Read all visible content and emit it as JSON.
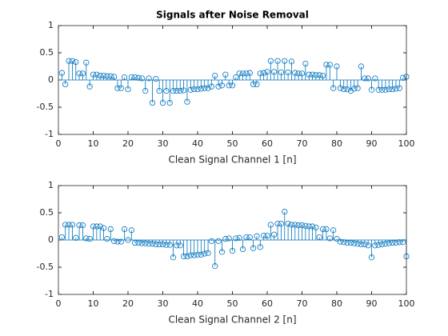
{
  "chart_data": [
    {
      "type": "stem",
      "title": "Signals after Noise Removal",
      "xlabel": "Clean Signal Channel 1 [n]",
      "color": "#0072bd",
      "xlim": [
        0,
        100
      ],
      "xticks": [
        0,
        10,
        20,
        30,
        40,
        50,
        60,
        70,
        80,
        90,
        100
      ],
      "ylim": [
        -1,
        1
      ],
      "yticks": [
        -1,
        -0.5,
        0,
        0.5,
        1
      ],
      "x": [
        1,
        2,
        3,
        4,
        5,
        6,
        7,
        8,
        9,
        10,
        11,
        12,
        13,
        14,
        15,
        16,
        17,
        18,
        19,
        20,
        21,
        22,
        23,
        24,
        25,
        26,
        27,
        28,
        29,
        30,
        31,
        32,
        33,
        34,
        35,
        36,
        37,
        38,
        39,
        40,
        41,
        42,
        43,
        44,
        45,
        46,
        47,
        48,
        49,
        50,
        51,
        52,
        53,
        54,
        55,
        56,
        57,
        58,
        59,
        60,
        61,
        62,
        63,
        64,
        65,
        66,
        67,
        68,
        69,
        70,
        71,
        72,
        73,
        74,
        75,
        76,
        77,
        78,
        79,
        80,
        81,
        82,
        83,
        84,
        85,
        86,
        87,
        88,
        89,
        90,
        91,
        92,
        93,
        94,
        95,
        96,
        97,
        98,
        99,
        100
      ],
      "values": [
        0.13,
        -0.08,
        0.35,
        0.35,
        0.33,
        0.12,
        0.12,
        0.32,
        -0.12,
        0.1,
        0.1,
        0.08,
        0.08,
        0.07,
        0.07,
        0.06,
        -0.15,
        -0.15,
        0.05,
        -0.17,
        0.05,
        0.05,
        0.04,
        0.03,
        -0.2,
        0.03,
        -0.42,
        0.02,
        -0.2,
        -0.42,
        -0.2,
        -0.42,
        -0.2,
        -0.2,
        -0.2,
        -0.19,
        -0.4,
        -0.18,
        -0.17,
        -0.17,
        -0.16,
        -0.15,
        -0.15,
        -0.12,
        0.08,
        -0.12,
        -0.1,
        0.1,
        -0.1,
        -0.1,
        0.05,
        0.12,
        0.12,
        0.12,
        0.13,
        -0.08,
        -0.08,
        0.12,
        0.13,
        0.15,
        0.35,
        0.15,
        0.35,
        0.14,
        0.35,
        0.14,
        0.34,
        0.13,
        0.12,
        0.12,
        0.3,
        0.1,
        0.1,
        0.09,
        0.09,
        0.08,
        0.28,
        0.28,
        -0.15,
        0.25,
        -0.15,
        -0.17,
        -0.17,
        -0.2,
        -0.16,
        -0.15,
        0.25,
        0.03,
        0.03,
        -0.18,
        0.03,
        -0.18,
        -0.18,
        -0.18,
        -0.17,
        -0.17,
        -0.16,
        -0.15,
        0.04,
        0.06
      ]
    },
    {
      "type": "stem",
      "xlabel": "Clean Signal Channel 2 [n]",
      "color": "#0072bd",
      "xlim": [
        0,
        100
      ],
      "xticks": [
        0,
        10,
        20,
        30,
        40,
        50,
        60,
        70,
        80,
        90,
        100
      ],
      "ylim": [
        -1,
        1
      ],
      "yticks": [
        -1,
        -0.5,
        0,
        0.5,
        1
      ],
      "x": [
        1,
        2,
        3,
        4,
        5,
        6,
        7,
        8,
        9,
        10,
        11,
        12,
        13,
        14,
        15,
        16,
        17,
        18,
        19,
        20,
        21,
        22,
        23,
        24,
        25,
        26,
        27,
        28,
        29,
        30,
        31,
        32,
        33,
        34,
        35,
        36,
        37,
        38,
        39,
        40,
        41,
        42,
        43,
        44,
        45,
        46,
        47,
        48,
        49,
        50,
        51,
        52,
        53,
        54,
        55,
        56,
        57,
        58,
        59,
        60,
        61,
        62,
        63,
        64,
        65,
        66,
        67,
        68,
        69,
        70,
        71,
        72,
        73,
        74,
        75,
        76,
        77,
        78,
        79,
        80,
        81,
        82,
        83,
        84,
        85,
        86,
        87,
        88,
        89,
        90,
        91,
        92,
        93,
        94,
        95,
        96,
        97,
        98,
        99,
        100
      ],
      "values": [
        0.05,
        0.28,
        0.28,
        0.28,
        0.04,
        0.27,
        0.27,
        0.03,
        0.02,
        0.25,
        0.25,
        0.25,
        0.22,
        0.02,
        0.2,
        -0.02,
        -0.03,
        -0.03,
        0.2,
        0.0,
        0.18,
        -0.05,
        -0.05,
        -0.06,
        -0.06,
        -0.07,
        -0.07,
        -0.08,
        -0.08,
        -0.08,
        -0.09,
        -0.09,
        -0.32,
        -0.1,
        -0.1,
        -0.3,
        -0.3,
        -0.28,
        -0.28,
        -0.27,
        -0.27,
        -0.25,
        -0.24,
        -0.02,
        -0.48,
        -0.02,
        -0.22,
        0.02,
        0.03,
        -0.2,
        0.03,
        0.04,
        -0.17,
        0.05,
        0.05,
        -0.15,
        0.07,
        -0.13,
        0.08,
        0.08,
        0.28,
        0.1,
        0.3,
        0.3,
        0.52,
        0.3,
        0.28,
        0.28,
        0.27,
        0.27,
        0.26,
        0.25,
        0.25,
        0.23,
        0.05,
        0.2,
        0.2,
        0.03,
        0.18,
        0.02,
        -0.03,
        -0.04,
        -0.05,
        -0.05,
        -0.06,
        -0.07,
        -0.08,
        -0.08,
        -0.1,
        -0.32,
        -0.1,
        -0.09,
        -0.08,
        -0.07,
        -0.06,
        -0.05,
        -0.05,
        -0.04,
        -0.04,
        -0.3
      ]
    }
  ]
}
